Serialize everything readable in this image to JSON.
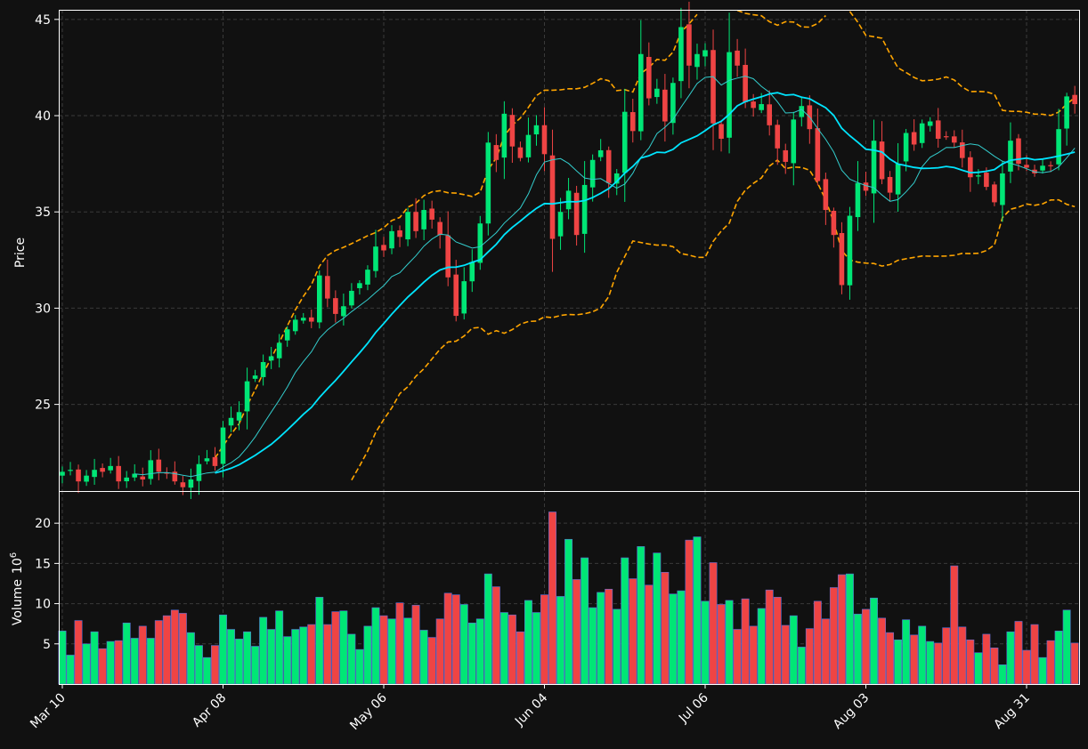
{
  "chart_data": {
    "type": "candlestick",
    "ylabel_price": "Price",
    "ylabel_volume": "Volume",
    "volume_exponent_label": "10",
    "volume_exponent_power": "6",
    "x_tick_labels": [
      "Mar 10",
      "Apr 08",
      "May 06",
      "Jun 04",
      "Jul 06",
      "Aug 03",
      "Aug 31"
    ],
    "x_tick_indices": [
      0,
      20,
      40,
      60,
      80,
      100,
      120
    ],
    "price_ylim": [
      20.5,
      45.5
    ],
    "price_yticks": [
      25,
      30,
      35,
      40,
      45
    ],
    "volume_ylim": [
      0,
      24
    ],
    "volume_yticks": [
      5,
      10,
      15,
      20
    ],
    "grid": true,
    "colors": {
      "up": "#00e676",
      "down": "#ef4444",
      "ma_fast": "#33cccc",
      "ma_slow": "#00e5ff",
      "bands": "#ffa500",
      "background": "#111111"
    },
    "indicators": [
      "moving-average-fast",
      "moving-average-slow",
      "upper-band",
      "lower-band"
    ],
    "close": [
      21.5,
      21.6,
      21.0,
      21.3,
      21.6,
      21.5,
      21.8,
      21.0,
      21.2,
      21.4,
      21.1,
      22.1,
      21.5,
      21.4,
      21.0,
      20.7,
      21.1,
      21.9,
      22.2,
      21.8,
      23.8,
      24.3,
      24.6,
      26.2,
      26.5,
      27.2,
      27.5,
      28.2,
      28.9,
      29.4,
      29.5,
      29.3,
      31.7,
      30.5,
      29.7,
      30.1,
      30.9,
      31.3,
      32.0,
      33.2,
      33.0,
      34.0,
      33.7,
      35.0,
      34.0,
      35.1,
      34.6,
      33.8,
      31.6,
      29.6,
      31.4,
      32.4,
      34.4,
      38.6,
      37.7,
      40.1,
      38.4,
      37.8,
      39.0,
      39.5,
      38.0,
      33.6,
      35.0,
      36.1,
      33.8,
      36.4,
      37.7,
      38.2,
      36.5,
      37.0,
      40.2,
      39.2,
      43.2,
      40.9,
      41.4,
      39.7,
      41.7,
      44.6,
      42.6,
      43.2,
      43.4,
      39.6,
      38.8,
      43.3,
      42.6,
      40.7,
      40.4,
      40.6,
      39.5,
      38.3,
      37.6,
      39.8,
      40.5,
      39.3,
      36.6,
      35.1,
      33.8,
      31.2,
      34.8,
      36.5,
      36.1,
      38.7,
      36.7,
      36.0,
      37.5,
      39.1,
      38.5,
      39.6,
      39.7,
      38.8,
      38.9,
      38.6,
      37.8,
      36.8,
      36.9,
      36.3,
      35.5,
      37.0,
      38.7,
      37.5,
      37.3,
      37.0,
      37.4,
      37.4,
      39.3,
      41.0,
      40.6
    ],
    "volume": [
      6.6,
      3.6,
      7.9,
      5.0,
      6.5,
      4.4,
      5.3,
      5.4,
      7.6,
      5.7,
      7.2,
      5.7,
      7.9,
      8.5,
      9.2,
      8.8,
      6.4,
      4.8,
      3.3,
      4.8,
      8.6,
      6.8,
      5.6,
      6.5,
      4.7,
      8.3,
      6.8,
      9.1,
      5.9,
      6.8,
      7.1,
      7.4,
      10.8,
      7.4,
      9.0,
      9.1,
      6.2,
      4.3,
      7.2,
      9.5,
      8.5,
      8.1,
      10.1,
      8.2,
      9.8,
      6.7,
      5.8,
      8.1,
      11.3,
      11.1,
      9.9,
      7.6,
      8.1,
      13.7,
      12.1,
      8.9,
      8.6,
      6.5,
      10.4,
      8.9,
      11.1,
      21.4,
      10.9,
      18.0,
      13.0,
      15.7,
      9.5,
      11.4,
      11.8,
      9.3,
      15.7,
      13.1,
      17.1,
      12.3,
      16.3,
      13.9,
      11.2,
      11.6,
      17.9,
      18.3,
      10.3,
      15.1,
      9.9,
      10.4,
      6.8,
      10.6,
      7.2,
      9.4,
      11.7,
      10.8,
      7.3,
      8.5,
      4.6,
      6.9,
      10.3,
      8.1,
      12.0,
      13.6,
      13.7,
      8.7,
      9.3,
      10.7,
      8.2,
      6.4,
      5.5,
      8.0,
      6.1,
      7.2,
      5.3,
      5.1,
      7.0,
      14.7,
      7.1,
      5.5,
      3.9,
      6.2,
      4.5,
      2.4,
      6.5,
      7.8,
      4.2,
      7.4,
      3.3,
      5.4,
      6.6,
      9.2,
      5.1
    ]
  }
}
